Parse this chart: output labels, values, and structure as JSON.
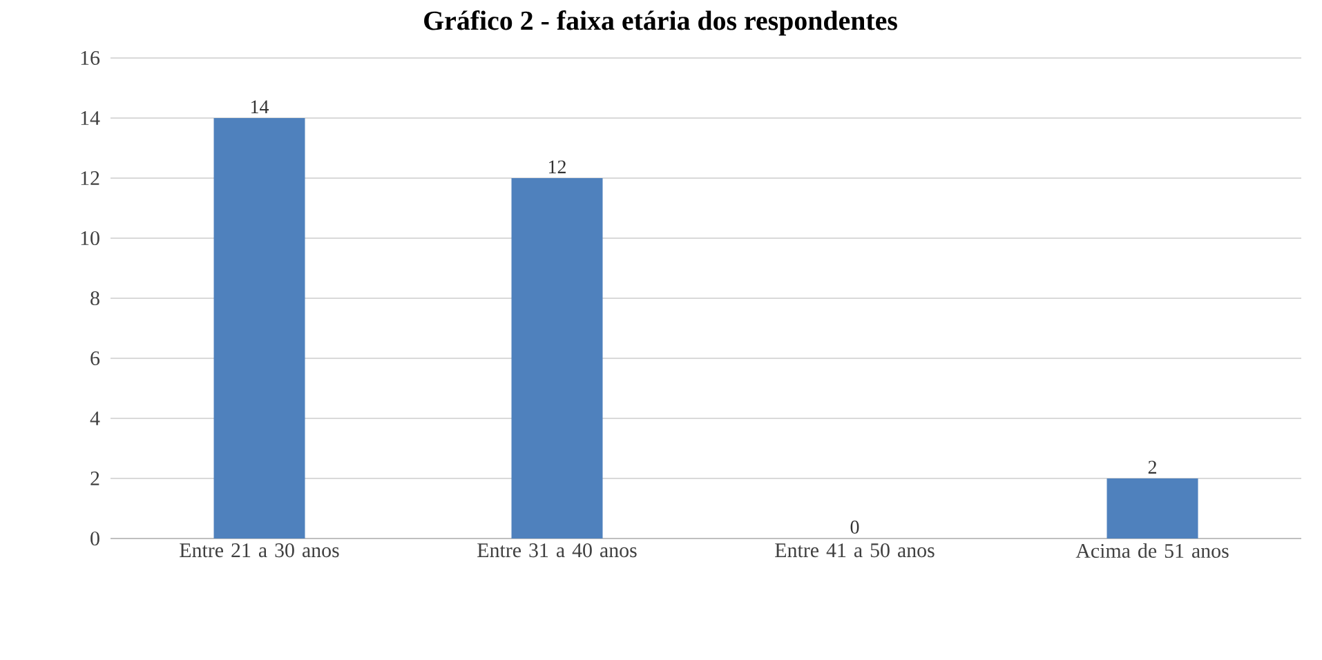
{
  "chart_data": {
    "type": "bar",
    "title": "Gráfico 2 - faixa etária dos respondentes",
    "categories": [
      "Entre 21 a 30 anos",
      "Entre 31 a 40 anos",
      "Entre 41 a 50 anos",
      "Acima de 51 anos"
    ],
    "values": [
      14,
      12,
      0,
      2
    ],
    "color": "#4f81bd",
    "ylim": [
      0,
      16
    ],
    "yticks": [
      0,
      2,
      4,
      6,
      8,
      10,
      12,
      14,
      16
    ],
    "grid": "y",
    "data_labels": true
  }
}
